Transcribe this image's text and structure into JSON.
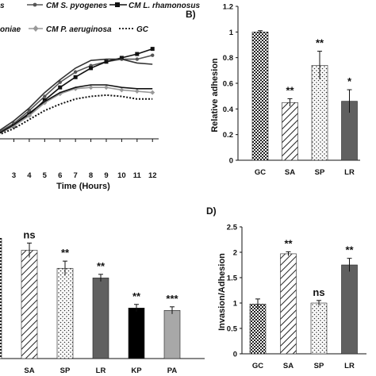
{
  "chart_data": [
    {
      "type": "line",
      "panel": "",
      "xlabel": "Time (Hours)",
      "ylabel": "",
      "xticks": [
        3,
        4,
        5,
        6,
        7,
        8,
        9,
        10,
        11,
        12
      ],
      "xlim": [
        2.1,
        12.4
      ],
      "ylim": [
        0,
        1
      ],
      "legend_items": [
        "s",
        "CM S. pyogenes",
        "CM L. rhamonosus",
        "oniae",
        "CM P. aeruginosa",
        "GC"
      ],
      "series": [
        {
          "name": "CM S. pyogenes",
          "color": "#555555",
          "marker": "circle",
          "dash": "",
          "x": [
            2,
            3,
            4,
            5,
            6,
            7,
            8,
            9,
            10,
            11,
            12
          ],
          "y": [
            0.05,
            0.12,
            0.22,
            0.33,
            0.44,
            0.52,
            0.57,
            0.6,
            0.62,
            0.62,
            0.65
          ]
        },
        {
          "name": "CM L. rhamonosus",
          "color": "#111111",
          "marker": "square",
          "dash": "",
          "x": [
            2,
            3,
            4,
            5,
            6,
            7,
            8,
            9,
            10,
            11,
            12
          ],
          "y": [
            0.04,
            0.1,
            0.19,
            0.3,
            0.4,
            0.48,
            0.55,
            0.6,
            0.63,
            0.66,
            0.7
          ]
        },
        {
          "name": "CM P. aeruginosa",
          "color": "#999999",
          "marker": "diamond",
          "dash": "",
          "x": [
            2,
            3,
            4,
            5,
            6,
            7,
            8,
            9,
            10,
            11,
            12
          ],
          "y": [
            0.04,
            0.1,
            0.18,
            0.28,
            0.35,
            0.39,
            0.4,
            0.4,
            0.38,
            0.37,
            0.36
          ]
        },
        {
          "name": "",
          "color": "#111111",
          "marker": "",
          "dash": "",
          "x": [
            2,
            3,
            4,
            5,
            6,
            7,
            8,
            9,
            10,
            11,
            12
          ],
          "y": [
            0.04,
            0.11,
            0.2,
            0.29,
            0.36,
            0.4,
            0.42,
            0.42,
            0.4,
            0.39,
            0.39
          ]
        },
        {
          "name": "",
          "color": "#333333",
          "marker": "",
          "dash": "",
          "x": [
            2,
            3,
            4,
            5,
            6,
            7,
            8,
            9,
            10,
            11,
            12
          ],
          "y": [
            0.06,
            0.14,
            0.24,
            0.36,
            0.46,
            0.55,
            0.61,
            0.62,
            0.62,
            0.59,
            0.58
          ]
        },
        {
          "name": "GC",
          "color": "#111111",
          "marker": "",
          "dash": "2,2",
          "x": [
            2,
            3,
            4,
            5,
            6,
            7,
            8,
            9,
            10,
            11,
            12
          ],
          "y": [
            0.03,
            0.08,
            0.15,
            0.22,
            0.27,
            0.31,
            0.33,
            0.34,
            0.33,
            0.31,
            0.31
          ]
        }
      ]
    },
    {
      "type": "bar",
      "panel": "B)",
      "ylabel": "Relative adhesion",
      "xlabel": "",
      "ylim": [
        0,
        1.2
      ],
      "yticks": [
        0,
        0.2,
        0.4,
        0.6,
        0.8,
        1.0,
        1.2
      ],
      "ytick_labels": [
        "0",
        "0.2",
        "0.4",
        "0.6",
        "0.8",
        "1",
        "1.2"
      ],
      "categories": [
        "GC",
        "SA",
        "SP",
        "LR"
      ],
      "values": [
        1.0,
        0.45,
        0.74,
        0.46
      ],
      "errors": [
        0.01,
        0.03,
        0.11,
        0.09
      ],
      "patterns": [
        "check",
        "diag",
        "dots",
        "solid-gray"
      ],
      "significance": [
        "",
        "**",
        "**",
        "*"
      ]
    },
    {
      "type": "bar",
      "panel": "",
      "ylabel": "",
      "xlabel": "",
      "ylim": [
        0,
        1.2
      ],
      "categories": [
        "",
        "SA",
        "SP",
        "LR",
        "KP",
        "PA"
      ],
      "values": [
        1.0,
        0.9,
        0.75,
        0.67,
        0.42,
        0.4
      ],
      "errors": [
        0,
        0.06,
        0.06,
        0.03,
        0.03,
        0.03
      ],
      "patterns": [
        "check",
        "diag",
        "dots",
        "solid-gray",
        "solid-black",
        "solid-lightgray"
      ],
      "significance": [
        "",
        "ns",
        "**",
        "**",
        "**",
        "***"
      ]
    },
    {
      "type": "bar",
      "panel": "D)",
      "ylabel": "Invasion/Adhesion",
      "xlabel": "",
      "ylim": [
        0,
        2.5
      ],
      "yticks": [
        0,
        0.5,
        1,
        1.5,
        2,
        2.5
      ],
      "ytick_labels": [
        "0",
        "0.5",
        "1",
        "1.5",
        "2",
        "2.5"
      ],
      "categories": [
        "GC",
        "SA",
        "SP",
        "LR"
      ],
      "values": [
        0.98,
        1.97,
        1.0,
        1.75
      ],
      "errors": [
        0.1,
        0.04,
        0.05,
        0.13
      ],
      "patterns": [
        "check",
        "diag",
        "dots",
        "solid-gray"
      ],
      "significance": [
        "",
        "**",
        "ns",
        "**"
      ]
    }
  ]
}
